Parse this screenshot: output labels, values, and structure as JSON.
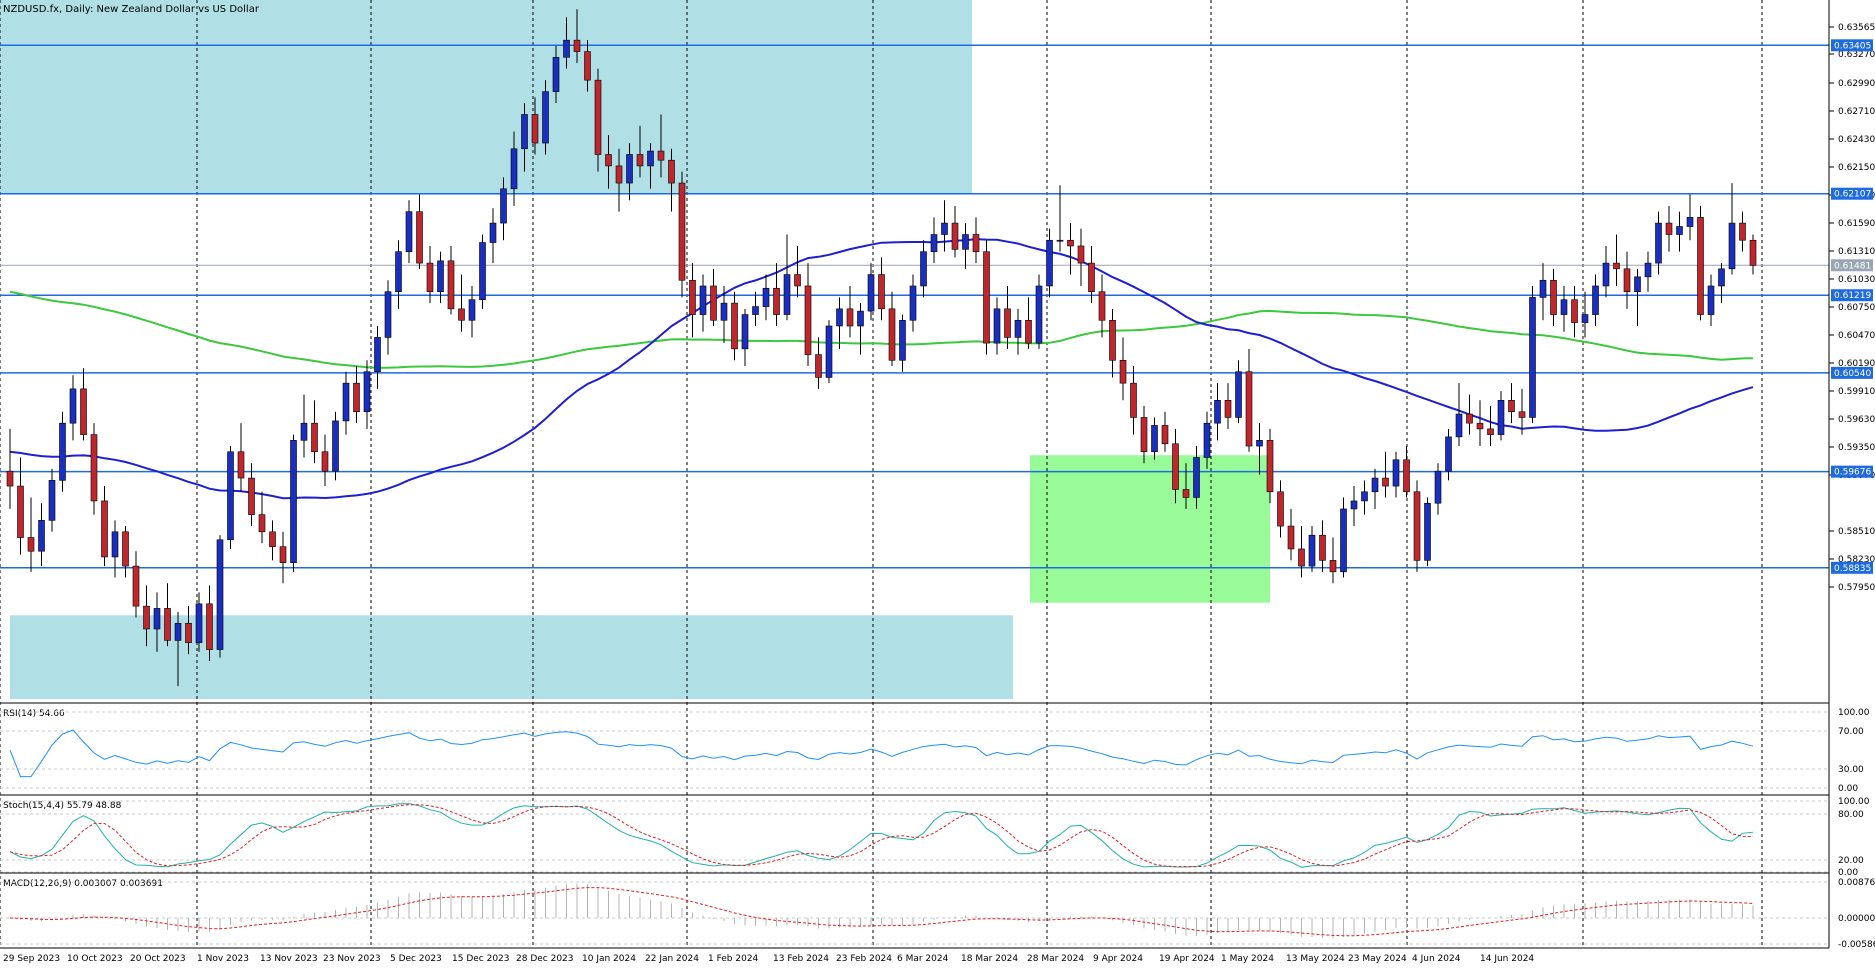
{
  "chart_title": "NZDUSD.fx, Daily:  New Zealand Dollar vs US Dollar",
  "price_axis_ticks": [
    "0.63565",
    "0.63270",
    "0.62990",
    "0.62710",
    "0.62430",
    "0.62150",
    "0.61870",
    "0.61590",
    "0.61310",
    "0.61030",
    "0.60750",
    "0.60470",
    "0.60190",
    "0.59910",
    "0.59630",
    "0.59350",
    "0.59070",
    "0.58510",
    "0.58230",
    "0.57950"
  ],
  "level_labels": [
    "0.63405",
    "0.62107",
    "0.61481",
    "0.61219",
    "0.60540",
    "0.59676",
    "0.58835"
  ],
  "date_labels": [
    "29 Sep 2023",
    "10 Oct 2023",
    "20 Oct 2023",
    "1 Nov 2023",
    "13 Nov 2023",
    "23 Nov 2023",
    "5 Dec 2023",
    "15 Dec 2023",
    "28 Dec 2023",
    "10 Jan 2024",
    "22 Jan 2024",
    "1 Feb 2024",
    "13 Feb 2024",
    "23 Feb 2024",
    "6 Mar 2024",
    "18 Mar 2024",
    "28 Mar 2024",
    "9 Apr 2024",
    "19 Apr 2024",
    "1 May 2024",
    "13 May 2024",
    "23 May 2024",
    "4 Jun 2024",
    "14 Jun 2024"
  ],
  "rsi": {
    "label": "RSI(14) 54.66",
    "ticks": [
      "100.00",
      "70.00",
      "30.00",
      "0.00"
    ]
  },
  "stoch": {
    "label": "Stoch(15,4,4) 55.79 48.88",
    "ticks": [
      "100.00",
      "80.00",
      "20.00",
      "0.00"
    ]
  },
  "macd": {
    "label": "MACD(12,26,9) 0.003007 0.003691",
    "ticks": [
      "0.008766",
      "0.000000",
      "-0.005860"
    ]
  },
  "colors": {
    "bull_candle": "#1a2fbf",
    "bear_candle": "#c0272d",
    "ma_fast": "#1e1ed2",
    "ma_slow": "#3cc83c",
    "horizontal_level": "#1e6be0",
    "supply_zone": "#b0e0e6",
    "demand_zone": "#98fb98",
    "indicator_line": "#1e90ff",
    "signal_line": "#e02020"
  },
  "chart_data": {
    "type": "candlestick",
    "candles": [
      [
        0.5968,
        0.6005,
        0.5935,
        0.5955
      ],
      [
        0.5955,
        0.598,
        0.5895,
        0.591
      ],
      [
        0.591,
        0.5945,
        0.588,
        0.5898
      ],
      [
        0.5898,
        0.594,
        0.5885,
        0.5925
      ],
      [
        0.5925,
        0.597,
        0.5915,
        0.596
      ],
      [
        0.596,
        0.602,
        0.595,
        0.601
      ],
      [
        0.601,
        0.6052,
        0.5995,
        0.604
      ],
      [
        0.604,
        0.6058,
        0.5995,
        0.6
      ],
      [
        0.6,
        0.601,
        0.593,
        0.5942
      ],
      [
        0.5942,
        0.5955,
        0.5885,
        0.5893
      ],
      [
        0.5893,
        0.5925,
        0.5875,
        0.5915
      ],
      [
        0.5915,
        0.592,
        0.5875,
        0.5885
      ],
      [
        0.5885,
        0.5898,
        0.584,
        0.585
      ],
      [
        0.585,
        0.5868,
        0.5815,
        0.583
      ],
      [
        0.583,
        0.5862,
        0.581,
        0.5848
      ],
      [
        0.5848,
        0.587,
        0.5815,
        0.582
      ],
      [
        0.582,
        0.5845,
        0.578,
        0.5835
      ],
      [
        0.5835,
        0.585,
        0.5808,
        0.5818
      ],
      [
        0.5818,
        0.5862,
        0.581,
        0.5852
      ],
      [
        0.5852,
        0.5868,
        0.5802,
        0.5812
      ],
      [
        0.5812,
        0.5912,
        0.5805,
        0.5908
      ],
      [
        0.5908,
        0.599,
        0.59,
        0.5985
      ],
      [
        0.5985,
        0.601,
        0.595,
        0.5962
      ],
      [
        0.5962,
        0.5975,
        0.592,
        0.593
      ],
      [
        0.593,
        0.595,
        0.5905,
        0.5915
      ],
      [
        0.5915,
        0.5925,
        0.589,
        0.5902
      ],
      [
        0.5902,
        0.5915,
        0.587,
        0.5888
      ],
      [
        0.5888,
        0.6,
        0.588,
        0.5995
      ],
      [
        0.5995,
        0.6035,
        0.598,
        0.601
      ],
      [
        0.601,
        0.603,
        0.5975,
        0.5985
      ],
      [
        0.5985,
        0.6,
        0.5955,
        0.5968
      ],
      [
        0.5968,
        0.602,
        0.596,
        0.6012
      ],
      [
        0.6012,
        0.6055,
        0.6,
        0.6045
      ],
      [
        0.6045,
        0.606,
        0.601,
        0.602
      ],
      [
        0.602,
        0.6065,
        0.6005,
        0.6055
      ],
      [
        0.6055,
        0.6095,
        0.604,
        0.6085
      ],
      [
        0.6085,
        0.6135,
        0.607,
        0.6125
      ],
      [
        0.6125,
        0.617,
        0.611,
        0.616
      ],
      [
        0.616,
        0.6205,
        0.615,
        0.6195
      ],
      [
        0.6195,
        0.621,
        0.6145,
        0.615
      ],
      [
        0.615,
        0.6165,
        0.6115,
        0.6125
      ],
      [
        0.6125,
        0.616,
        0.6115,
        0.6152
      ],
      [
        0.6152,
        0.6165,
        0.6105,
        0.611
      ],
      [
        0.611,
        0.614,
        0.609,
        0.61
      ],
      [
        0.61,
        0.613,
        0.6085,
        0.6118
      ],
      [
        0.6118,
        0.6175,
        0.611,
        0.6168
      ],
      [
        0.6168,
        0.6198,
        0.615,
        0.6185
      ],
      [
        0.6185,
        0.6225,
        0.617,
        0.6215
      ],
      [
        0.6215,
        0.6265,
        0.62,
        0.625
      ],
      [
        0.625,
        0.629,
        0.623,
        0.628
      ],
      [
        0.628,
        0.6295,
        0.6245,
        0.6255
      ],
      [
        0.6255,
        0.631,
        0.6245,
        0.63
      ],
      [
        0.63,
        0.634,
        0.629,
        0.633
      ],
      [
        0.633,
        0.6365,
        0.632,
        0.6345
      ],
      [
        0.6345,
        0.6372,
        0.6325,
        0.6335
      ],
      [
        0.6335,
        0.6345,
        0.63,
        0.631
      ],
      [
        0.631,
        0.632,
        0.623,
        0.6245
      ],
      [
        0.6245,
        0.6262,
        0.6215,
        0.6235
      ],
      [
        0.6235,
        0.625,
        0.6195,
        0.622
      ],
      [
        0.622,
        0.6255,
        0.6205,
        0.6245
      ],
      [
        0.6245,
        0.627,
        0.6225,
        0.6235
      ],
      [
        0.6235,
        0.6255,
        0.6215,
        0.6248
      ],
      [
        0.6248,
        0.628,
        0.6225,
        0.624
      ],
      [
        0.624,
        0.625,
        0.6195,
        0.622
      ],
      [
        0.622,
        0.623,
        0.612,
        0.6135
      ],
      [
        0.6135,
        0.615,
        0.6085,
        0.6105
      ],
      [
        0.6105,
        0.614,
        0.609,
        0.613
      ],
      [
        0.613,
        0.6145,
        0.6095,
        0.61
      ],
      [
        0.61,
        0.613,
        0.608,
        0.6115
      ],
      [
        0.6115,
        0.6125,
        0.6065,
        0.6075
      ],
      [
        0.6075,
        0.611,
        0.606,
        0.6105
      ],
      [
        0.6105,
        0.6125,
        0.6095,
        0.6112
      ],
      [
        0.6112,
        0.614,
        0.61,
        0.6128
      ],
      [
        0.6128,
        0.615,
        0.6095,
        0.6105
      ],
      [
        0.6105,
        0.6175,
        0.61,
        0.614
      ],
      [
        0.614,
        0.6165,
        0.612,
        0.613
      ],
      [
        0.613,
        0.615,
        0.606,
        0.607
      ],
      [
        0.607,
        0.6085,
        0.604,
        0.605
      ],
      [
        0.605,
        0.61,
        0.6045,
        0.6095
      ],
      [
        0.6095,
        0.612,
        0.6075,
        0.611
      ],
      [
        0.611,
        0.613,
        0.6085,
        0.6095
      ],
      [
        0.6095,
        0.6115,
        0.607,
        0.6108
      ],
      [
        0.6108,
        0.615,
        0.61,
        0.614
      ],
      [
        0.614,
        0.6155,
        0.61,
        0.611
      ],
      [
        0.611,
        0.6125,
        0.606,
        0.6065
      ],
      [
        0.6065,
        0.6105,
        0.6055,
        0.61
      ],
      [
        0.61,
        0.614,
        0.609,
        0.613
      ],
      [
        0.613,
        0.617,
        0.612,
        0.616
      ],
      [
        0.616,
        0.619,
        0.615,
        0.6175
      ],
      [
        0.6175,
        0.6205,
        0.616,
        0.6185
      ],
      [
        0.6185,
        0.62,
        0.6155,
        0.6162
      ],
      [
        0.6162,
        0.6185,
        0.6145,
        0.6175
      ],
      [
        0.6175,
        0.619,
        0.615,
        0.616
      ],
      [
        0.616,
        0.617,
        0.607,
        0.608
      ],
      [
        0.608,
        0.612,
        0.607,
        0.611
      ],
      [
        0.611,
        0.613,
        0.6075,
        0.6085
      ],
      [
        0.6085,
        0.611,
        0.607,
        0.61
      ],
      [
        0.61,
        0.612,
        0.6075,
        0.608
      ],
      [
        0.608,
        0.614,
        0.6075,
        0.613
      ],
      [
        0.613,
        0.618,
        0.612,
        0.617
      ],
      [
        0.617,
        0.6218,
        0.616,
        0.617
      ],
      [
        0.617,
        0.6185,
        0.614,
        0.6165
      ],
      [
        0.6165,
        0.618,
        0.613,
        0.615
      ],
      [
        0.615,
        0.6165,
        0.6115,
        0.6125
      ],
      [
        0.6125,
        0.614,
        0.6085,
        0.61
      ],
      [
        0.61,
        0.611,
        0.605,
        0.6065
      ],
      [
        0.6065,
        0.6085,
        0.603,
        0.6045
      ],
      [
        0.6045,
        0.606,
        0.6,
        0.6015
      ],
      [
        0.6015,
        0.6025,
        0.5975,
        0.5985
      ],
      [
        0.5985,
        0.6015,
        0.5978,
        0.6008
      ],
      [
        0.6008,
        0.602,
        0.5985,
        0.5992
      ],
      [
        0.5992,
        0.6005,
        0.594,
        0.5952
      ],
      [
        0.5952,
        0.5975,
        0.5935,
        0.5945
      ],
      [
        0.5945,
        0.599,
        0.5935,
        0.598
      ],
      [
        0.598,
        0.602,
        0.597,
        0.601
      ],
      [
        0.601,
        0.6045,
        0.5995,
        0.603
      ],
      [
        0.603,
        0.6045,
        0.6005,
        0.6015
      ],
      [
        0.6015,
        0.6065,
        0.601,
        0.6055
      ],
      [
        0.6055,
        0.6075,
        0.5985,
        0.599
      ],
      [
        0.599,
        0.601,
        0.5965,
        0.5995
      ],
      [
        0.5995,
        0.6005,
        0.594,
        0.595
      ],
      [
        0.595,
        0.596,
        0.591,
        0.592
      ],
      [
        0.592,
        0.5935,
        0.589,
        0.59
      ],
      [
        0.59,
        0.592,
        0.5875,
        0.5885
      ],
      [
        0.5885,
        0.592,
        0.588,
        0.5912
      ],
      [
        0.5912,
        0.5925,
        0.588,
        0.589
      ],
      [
        0.589,
        0.591,
        0.587,
        0.588
      ],
      [
        0.588,
        0.5945,
        0.5875,
        0.5935
      ],
      [
        0.5935,
        0.5955,
        0.592,
        0.5942
      ],
      [
        0.5942,
        0.596,
        0.593,
        0.595
      ],
      [
        0.595,
        0.597,
        0.5935,
        0.5962
      ],
      [
        0.5962,
        0.5985,
        0.5945,
        0.5955
      ],
      [
        0.5955,
        0.5985,
        0.5945,
        0.5978
      ],
      [
        0.5978,
        0.599,
        0.5945,
        0.595
      ],
      [
        0.595,
        0.596,
        0.588,
        0.589
      ],
      [
        0.589,
        0.5945,
        0.5885,
        0.594
      ],
      [
        0.594,
        0.5975,
        0.593,
        0.5968
      ],
      [
        0.5968,
        0.6005,
        0.596,
        0.5998
      ],
      [
        0.5998,
        0.6045,
        0.599,
        0.6018
      ],
      [
        0.6018,
        0.6035,
        0.6,
        0.601
      ],
      [
        0.601,
        0.603,
        0.599,
        0.6005
      ],
      [
        0.6005,
        0.6025,
        0.599,
        0.6
      ],
      [
        0.6,
        0.6038,
        0.5995,
        0.603
      ],
      [
        0.603,
        0.6045,
        0.601,
        0.602
      ],
      [
        0.602,
        0.604,
        0.6,
        0.6015
      ],
      [
        0.6015,
        0.613,
        0.601,
        0.612
      ],
      [
        0.612,
        0.615,
        0.61,
        0.6135
      ],
      [
        0.6135,
        0.6145,
        0.6095,
        0.6105
      ],
      [
        0.6105,
        0.613,
        0.609,
        0.6118
      ],
      [
        0.6118,
        0.613,
        0.6085,
        0.6098
      ],
      [
        0.6098,
        0.6125,
        0.6085,
        0.6105
      ],
      [
        0.6105,
        0.614,
        0.6095,
        0.613
      ],
      [
        0.613,
        0.6165,
        0.612,
        0.615
      ],
      [
        0.615,
        0.6175,
        0.613,
        0.6145
      ],
      [
        0.6145,
        0.616,
        0.611,
        0.6125
      ],
      [
        0.6125,
        0.6145,
        0.6095,
        0.6138
      ],
      [
        0.6138,
        0.616,
        0.6125,
        0.615
      ],
      [
        0.615,
        0.6195,
        0.614,
        0.6185
      ],
      [
        0.6185,
        0.62,
        0.616,
        0.6175
      ],
      [
        0.6175,
        0.6195,
        0.616,
        0.6182
      ],
      [
        0.6182,
        0.621,
        0.617,
        0.619
      ],
      [
        0.619,
        0.62,
        0.61,
        0.6105
      ],
      [
        0.6105,
        0.614,
        0.6095,
        0.613
      ],
      [
        0.613,
        0.615,
        0.6115,
        0.6145
      ],
      [
        0.6145,
        0.622,
        0.614,
        0.6185
      ],
      [
        0.6185,
        0.6195,
        0.616,
        0.617
      ],
      [
        0.617,
        0.6175,
        0.614,
        0.6148
      ]
    ],
    "horizontal_levels": [
      0.63405,
      0.62107,
      0.61219,
      0.6054,
      0.59676,
      0.58835
    ],
    "current_price": 0.61481,
    "ylim": [
      0.5768,
      0.6372
    ],
    "ma_fast_period": "50",
    "ma_slow_period": "200"
  }
}
